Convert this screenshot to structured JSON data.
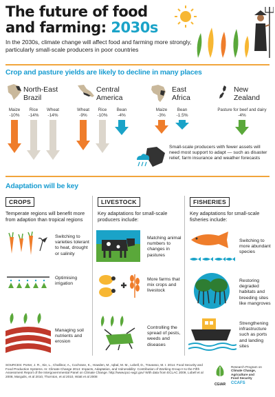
{
  "header": {
    "title_line1": "The future of food",
    "title_line2a": "and farming: ",
    "title_line2b": "2030s",
    "intro": "In the 2030s, climate change will  affect food and farming more strongly, particularly small-scale producers in poor countries"
  },
  "yields": {
    "heading": "Crop and pasture yields are likely to decline in many places",
    "regions": [
      {
        "name_line1": "North-East",
        "name_line2": "Brazil",
        "crops": [
          {
            "label": "Maize",
            "value": "-10%"
          },
          {
            "label": "Rice",
            "value": "-14%"
          },
          {
            "label": "Wheat",
            "value": "-14%"
          }
        ]
      },
      {
        "name_line1": "Central",
        "name_line2": "America",
        "crops": [
          {
            "label": "Wheat",
            "value": "-9%"
          },
          {
            "label": "Rice",
            "value": "-10%"
          },
          {
            "label": "Bean",
            "value": "-4%"
          }
        ]
      },
      {
        "name_line1": "East",
        "name_line2": "Africa",
        "crops": [
          {
            "label": "Maize",
            "value": "-3%"
          },
          {
            "label": "Bean",
            "value": "-1.5%"
          }
        ]
      },
      {
        "name_line1": "New",
        "name_line2": "Zealand",
        "crops": [
          {
            "label": "Pasture for beef and dairy",
            "value": "-4%"
          }
        ]
      }
    ],
    "smallholder_note": "Small-scale producers with fewer assets will need most support to adapt — such as disaster relief, farm insurance and weather forecasts"
  },
  "adaptation": {
    "heading": "Adaptation will be key",
    "columns": [
      {
        "title": "CROPS",
        "intro": "Temperate regions will benefit more from adaption than tropical regions",
        "items": [
          "Switching to varieties tolerant to heat, drought or salinity",
          "Optimising irrigation",
          "Managing soil nutrients and erosion"
        ]
      },
      {
        "title": "LIVESTOCK",
        "intro": "Key adaptations for small-scale producers include:",
        "items": [
          "Matching animal numbers to changes in pastures",
          "More farms that mix crops and livestock",
          "Controlling the spread of pests, weeds and diseases"
        ]
      },
      {
        "title": "FISHERIES",
        "intro": "Key adaptations for small-scale fisheries include:",
        "items": [
          "Switching to more abundant species",
          "Restoring degraded habitats and breeding sites like mangroves",
          "Strengthening infrastructure such as ports and landing sites"
        ]
      }
    ]
  },
  "footer": {
    "sources": "SOURCES: Porter, J. R., Xie, L., Challinor, A., Cochrane, K., Howden, M., Iqbal, M. M., Lobell, D., Travasso, M. I. 2014. Food Security and Food Production Systems. In: Climate Change 2014: Impacts, Adaptation, and Vulnerability: Contribution of Working Group II to the Fifth Assessment Report of the Intergovernmental Panel on Climate Change. http://www.ipcc-wg2.gov/ With data from ECLAC 2009, Lobell et al 2008, Margulis, et al 2010, Thornton, et al 2010, Wiatt et al 2008",
    "logo1": "CGIAR",
    "logo2_line1": "Research Program on",
    "logo2_line2": "Climate Change,",
    "logo2_line3": "Agriculture and",
    "logo2_line4": "Food Security",
    "logo3": "CCAFS"
  },
  "colors": {
    "accent_blue": "#1aa3c8",
    "arrow_orange": "#ef7d2b",
    "arrow_grey": "#dcd6cc",
    "arrow_green": "#5aa83a",
    "rule_orange": "#f1a43a"
  }
}
